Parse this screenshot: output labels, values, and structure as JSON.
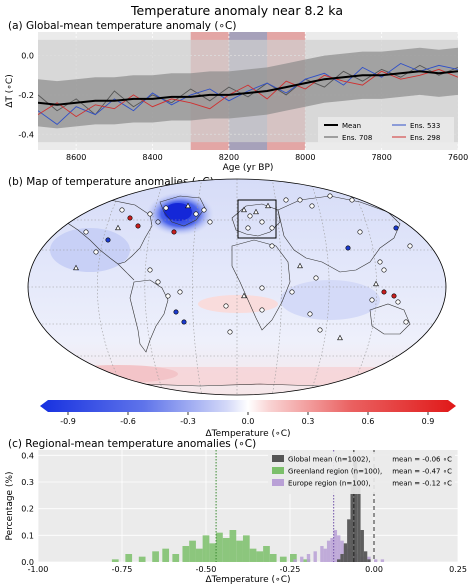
{
  "figure_title": "Temperature anomaly near 8.2 ka",
  "chart_data": [
    {
      "panel": "a",
      "type": "line",
      "title": "(a) Global-mean temperature anomaly (∘C)",
      "xlabel": "Age (yr BP)",
      "ylabel": "ΔT (∘C)",
      "xlim": [
        8700,
        7600
      ],
      "ylim": [
        -0.48,
        0.12
      ],
      "x_ticks": [
        "8600",
        "8400",
        "8200",
        "8000",
        "7800",
        "7600"
      ],
      "y_ticks": [
        "0.0",
        "-0.2",
        "-0.4"
      ],
      "grid": true,
      "legend_position": "lower-right",
      "shaded_regions": [
        {
          "x": [
            8300,
            8100
          ],
          "color": "#d9534f"
        },
        {
          "x": [
            8200,
            8100
          ],
          "color": "#5b9bd5"
        },
        {
          "x": [
            8100,
            8000
          ],
          "color": "#d9534f"
        }
      ],
      "band_outer": {
        "lower": -0.44,
        "upper": 0.08
      },
      "series": [
        {
          "name": "Mean",
          "color": "#000000",
          "x": [
            8700,
            8650,
            8600,
            8550,
            8500,
            8450,
            8400,
            8350,
            8300,
            8250,
            8200,
            8150,
            8100,
            8050,
            8000,
            7950,
            7900,
            7850,
            7800,
            7750,
            7700,
            7650,
            7600
          ],
          "y": [
            -0.24,
            -0.25,
            -0.24,
            -0.23,
            -0.23,
            -0.22,
            -0.22,
            -0.21,
            -0.21,
            -0.2,
            -0.2,
            -0.19,
            -0.18,
            -0.16,
            -0.14,
            -0.12,
            -0.11,
            -0.1,
            -0.1,
            -0.09,
            -0.08,
            -0.09,
            -0.08
          ]
        },
        {
          "name": "Ens. 708",
          "color": "#555555",
          "x": [
            8700,
            8650,
            8600,
            8550,
            8500,
            8450,
            8400,
            8350,
            8300,
            8250,
            8200,
            8150,
            8100,
            8050,
            8000,
            7950,
            7900,
            7850,
            7800,
            7750,
            7700,
            7650,
            7600
          ],
          "y": [
            -0.2,
            -0.28,
            -0.22,
            -0.3,
            -0.18,
            -0.26,
            -0.2,
            -0.24,
            -0.17,
            -0.23,
            -0.16,
            -0.21,
            -0.14,
            -0.2,
            -0.12,
            -0.16,
            -0.08,
            -0.13,
            -0.07,
            -0.11,
            -0.05,
            -0.1,
            -0.06
          ]
        },
        {
          "name": "Ens. 533",
          "color": "#3050c8",
          "x": [
            8700,
            8650,
            8600,
            8550,
            8500,
            8450,
            8400,
            8350,
            8300,
            8250,
            8200,
            8150,
            8100,
            8050,
            8000,
            7950,
            7900,
            7850,
            7800,
            7750,
            7700,
            7650,
            7600
          ],
          "y": [
            -0.28,
            -0.35,
            -0.26,
            -0.3,
            -0.22,
            -0.28,
            -0.19,
            -0.25,
            -0.2,
            -0.17,
            -0.23,
            -0.18,
            -0.14,
            -0.19,
            -0.12,
            -0.09,
            -0.15,
            -0.06,
            -0.11,
            -0.04,
            -0.08,
            -0.05,
            -0.07
          ]
        },
        {
          "name": "Ens. 298",
          "color": "#d03030",
          "x": [
            8700,
            8650,
            8600,
            8550,
            8500,
            8450,
            8400,
            8350,
            8300,
            8250,
            8200,
            8150,
            8100,
            8050,
            8000,
            7950,
            7900,
            7850,
            7800,
            7750,
            7700,
            7650,
            7600
          ],
          "y": [
            -0.3,
            -0.24,
            -0.31,
            -0.25,
            -0.27,
            -0.2,
            -0.26,
            -0.22,
            -0.24,
            -0.27,
            -0.2,
            -0.15,
            -0.22,
            -0.13,
            -0.17,
            -0.1,
            -0.13,
            -0.15,
            -0.08,
            -0.12,
            -0.1,
            -0.07,
            -0.11
          ]
        }
      ]
    },
    {
      "panel": "b",
      "type": "heatmap",
      "title": "(b) Map of temperature anomalies (∘C)",
      "colorbar_label": "ΔTemperature (∘C)",
      "colorbar_range": [
        -1.0,
        1.0
      ],
      "colorbar_ticks": [
        "-0.9",
        "-0.6",
        "-0.3",
        "0.0",
        "0.3",
        "0.6",
        "0.9"
      ],
      "cold_color": "#2035e0",
      "warm_color": "#e02020",
      "neutral_color": "#ffffff",
      "regions": [
        {
          "name": "Greenland region",
          "anomaly": -0.47,
          "outlined": false
        },
        {
          "name": "Europe region",
          "anomaly": -0.12,
          "outlined": true
        }
      ]
    },
    {
      "panel": "c",
      "type": "bar",
      "title": "(c) Regional-mean temperature anomalies (∘C)",
      "xlabel": "ΔTemperature (∘C)",
      "ylabel": "Percentage (%)",
      "xlim": [
        -1.0,
        0.25
      ],
      "ylim": [
        0,
        0.42
      ],
      "x_ticks": [
        "-1.00",
        "-0.75",
        "-0.50",
        "-0.25",
        "0.00",
        "0.25"
      ],
      "y_ticks": [
        "0.0",
        "0.1",
        "0.2",
        "0.3",
        "0.4"
      ],
      "grid": true,
      "legend_position": "top-right",
      "bin_width": 0.01,
      "series": [
        {
          "name": "Global mean (n=1002),",
          "mean_label": "mean = -0.06 ∘C",
          "mean": -0.06,
          "color": "#555555",
          "line_color": "#222222",
          "bins": [
            -0.11,
            -0.1,
            -0.09,
            -0.08,
            -0.07,
            -0.06,
            -0.05,
            -0.04,
            -0.03,
            -0.02
          ],
          "values": [
            0.01,
            0.03,
            0.07,
            0.16,
            0.29,
            0.39,
            0.3,
            0.12,
            0.04,
            0.01
          ]
        },
        {
          "name": "Greenland region (n=100),",
          "mean_label": "mean = -0.47 ∘C",
          "mean": -0.47,
          "color": "#7bbf6a",
          "line_color": "#3a8a30",
          "bins": [
            -0.78,
            -0.74,
            -0.7,
            -0.66,
            -0.63,
            -0.6,
            -0.57,
            -0.55,
            -0.53,
            -0.51,
            -0.49,
            -0.47,
            -0.45,
            -0.43,
            -0.41,
            -0.39,
            -0.37,
            -0.35,
            -0.33,
            -0.31,
            -0.28,
            -0.25,
            -0.21
          ],
          "values": [
            0.01,
            0.03,
            0.02,
            0.04,
            0.05,
            0.03,
            0.06,
            0.08,
            0.05,
            0.1,
            0.07,
            0.11,
            0.09,
            0.12,
            0.08,
            0.1,
            0.05,
            0.04,
            0.06,
            0.03,
            0.02,
            0.03,
            0.01
          ]
        },
        {
          "name": "Europe region (n=100),",
          "mean_label": "mean = -0.12 ∘C",
          "mean": -0.12,
          "color": "#b9a0d6",
          "line_color": "#7050a8",
          "bins": [
            -0.24,
            -0.22,
            -0.2,
            -0.18,
            -0.16,
            -0.15,
            -0.14,
            -0.13,
            -0.12,
            -0.11,
            -0.1,
            -0.09,
            -0.08,
            -0.06,
            -0.04,
            -0.02,
            0.0,
            0.02
          ],
          "values": [
            0.01,
            0.02,
            0.03,
            0.04,
            0.06,
            0.05,
            0.08,
            0.09,
            0.12,
            0.1,
            0.08,
            0.06,
            0.05,
            0.03,
            0.02,
            0.02,
            0.01,
            0.01
          ]
        }
      ]
    }
  ]
}
